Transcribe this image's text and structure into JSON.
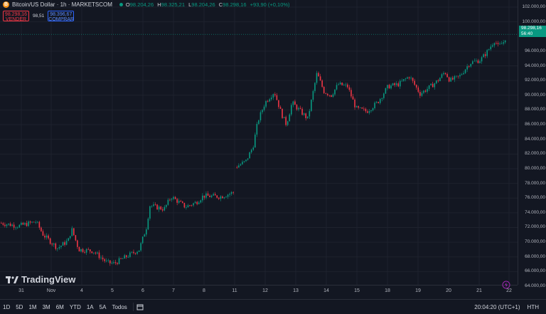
{
  "header": {
    "coin_icon": "B",
    "title": "Bitcoin/US Dollar · 1h · MARKETSCOM",
    "ohlc": {
      "o_label": "O",
      "o": "98.204,26",
      "h_label": "H",
      "h": "98.325,21",
      "l_label": "L",
      "l": "98.204,26",
      "c_label": "C",
      "c": "98.298,16",
      "change": "+93,90 (+0,10%)"
    }
  },
  "trade": {
    "sell_price": "98.298,16",
    "sell_label": "VENDER",
    "spread": "98,51",
    "buy_price": "98.396,67",
    "buy_label": "COMPRAR"
  },
  "price_axis": {
    "labels": [
      "102.000,00",
      "100.000,00",
      "96.000,00",
      "94.000,00",
      "92.000,00",
      "90.000,00",
      "88.000,00",
      "86.000,00",
      "84.000,00",
      "82.000,00",
      "80.000,00",
      "78.000,00",
      "76.000,00",
      "74.000,00",
      "72.000,00",
      "70.000,00",
      "68.000,00",
      "66.000,00",
      "64.000,00"
    ],
    "last_price": "98.298,16",
    "countdown": "56:40"
  },
  "time_axis": {
    "labels": [
      "31",
      "Nov",
      "4",
      "5",
      "6",
      "7",
      "8",
      "11",
      "12",
      "13",
      "14",
      "15",
      "18",
      "19",
      "20",
      "21",
      "22"
    ]
  },
  "logo": {
    "text": "TradingView"
  },
  "toolbar": {
    "ranges": [
      "1D",
      "5D",
      "1M",
      "3M",
      "6M",
      "YTD",
      "1A",
      "5A",
      "Todos"
    ],
    "time": "20:04:20 (UTC+1)",
    "session": "HTH"
  },
  "colors": {
    "up": "#089981",
    "down": "#f23645",
    "bg": "#131722"
  },
  "chart_data": {
    "type": "line",
    "x": [
      "31",
      "Nov",
      "4",
      "5",
      "6",
      "7",
      "8",
      "11",
      "12",
      "13",
      "14",
      "15",
      "18",
      "19",
      "20",
      "21",
      "22"
    ],
    "series": [
      {
        "values": [
          72500,
          71000,
          69000,
          67500,
          69500,
          75500,
          75500,
          76500,
          90000,
          87500,
          91000,
          88500,
          90500,
          91000,
          92500,
          97500,
          98298.16
        ]
      }
    ],
    "ylim": [
      63000,
      103000
    ]
  }
}
